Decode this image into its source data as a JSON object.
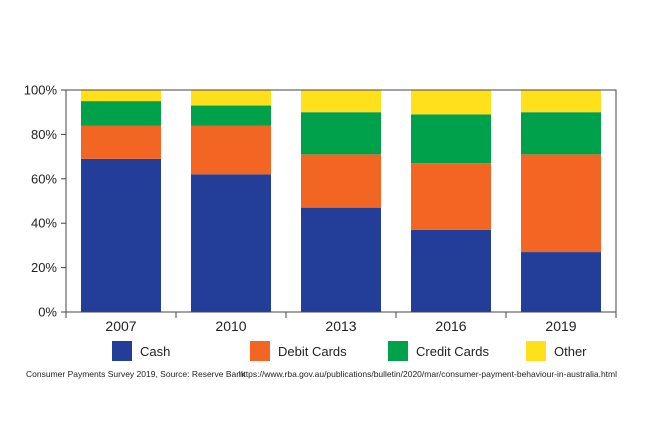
{
  "chart_data": {
    "type": "bar",
    "stacked": true,
    "categories": [
      "2007",
      "2010",
      "2013",
      "2016",
      "2019"
    ],
    "series": [
      {
        "name": "Cash",
        "color": "#233e99",
        "values": [
          69,
          62,
          47,
          37,
          27
        ]
      },
      {
        "name": "Debit Cards",
        "color": "#f26522",
        "values": [
          15,
          22,
          24,
          30,
          44
        ]
      },
      {
        "name": "Credit Cards",
        "color": "#00a14b",
        "values": [
          11,
          9,
          19,
          22,
          19
        ]
      },
      {
        "name": "Other",
        "color": "#ffe01a",
        "values": [
          5,
          7,
          10,
          11,
          10
        ]
      }
    ],
    "ylim": [
      0,
      100
    ],
    "yticks": [
      "0%",
      "20%",
      "40%",
      "60%",
      "80%",
      "100%"
    ],
    "grid": false,
    "legend_position": "bottom"
  },
  "footer": {
    "source_text": "Consumer Payments Survey 2019, Source: Reserve Bank",
    "url_text": "https://www.rba.gov.au/publications/bulletin/2020/mar/consumer-payment-behaviour-in-australia.html"
  }
}
